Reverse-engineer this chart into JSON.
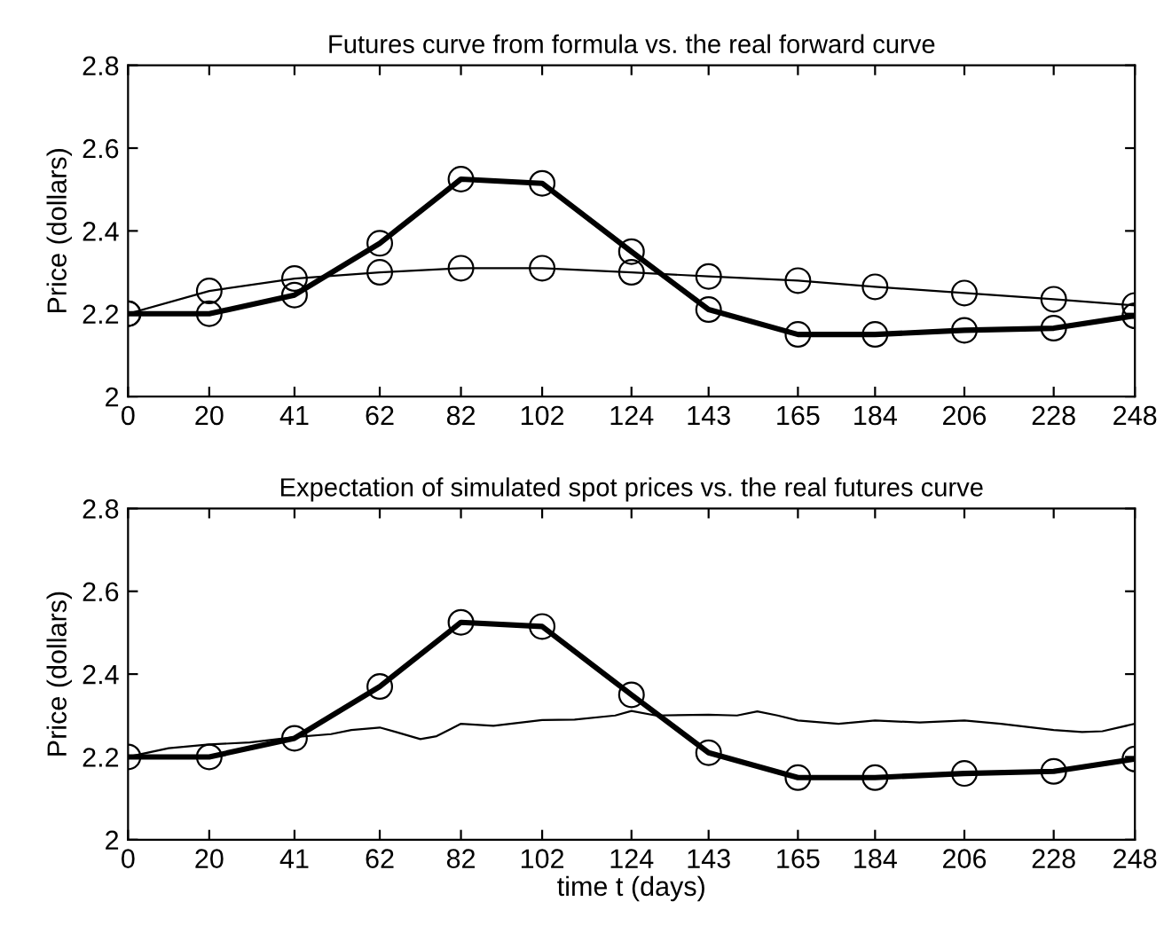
{
  "chart_data": [
    {
      "type": "line",
      "title": "Futures curve from formula vs. the real forward curve",
      "ylabel": "Price (dollars)",
      "xlim": [
        0,
        248
      ],
      "xticks": [
        0,
        20,
        41,
        62,
        82,
        102,
        124,
        143,
        165,
        184,
        206,
        228,
        248
      ],
      "ylim": [
        2,
        2.8
      ],
      "yticks": [
        2,
        2.2,
        2.4,
        2.6,
        2.8
      ],
      "grid": false,
      "legend": false,
      "marker": "circle",
      "x": [
        0,
        20,
        41,
        62,
        82,
        102,
        124,
        143,
        165,
        184,
        206,
        228,
        248
      ],
      "series": [
        {
          "color": "#000000",
          "values": [
            2.2,
            2.2,
            2.245,
            2.37,
            2.525,
            2.515,
            2.35,
            2.21,
            2.15,
            2.15,
            2.16,
            2.165,
            2.195
          ]
        },
        {
          "color": "#000000",
          "values": [
            2.2,
            2.255,
            2.285,
            2.3,
            2.31,
            2.31,
            2.3,
            2.29,
            2.28,
            2.265,
            2.25,
            2.235,
            2.22
          ]
        }
      ]
    },
    {
      "type": "line",
      "title": "Expectation of simulated spot prices vs. the real futures curve",
      "xlabel": "time t (days)",
      "ylabel": "Price (dollars)",
      "xlim": [
        0,
        248
      ],
      "xticks": [
        0,
        20,
        41,
        62,
        82,
        102,
        124,
        143,
        165,
        184,
        206,
        228,
        248
      ],
      "ylim": [
        2,
        2.8
      ],
      "yticks": [
        2,
        2.2,
        2.4,
        2.6,
        2.8
      ],
      "grid": false,
      "legend": false,
      "x": [
        0,
        20,
        41,
        62,
        82,
        102,
        124,
        143,
        165,
        184,
        206,
        228,
        248
      ],
      "series": [
        {
          "color": "#000000",
          "marker": "circle",
          "values": [
            2.2,
            2.2,
            2.245,
            2.37,
            2.525,
            2.515,
            2.35,
            2.21,
            2.15,
            2.15,
            2.16,
            2.165,
            2.195
          ]
        },
        {
          "color": "#000000",
          "marker": "none",
          "x": [
            0,
            10,
            20,
            30,
            41,
            50,
            55,
            62,
            66,
            72,
            76,
            82,
            90,
            102,
            110,
            120,
            124,
            130,
            143,
            150,
            155,
            160,
            165,
            175,
            184,
            195,
            206,
            215,
            228,
            235,
            240,
            248
          ],
          "values": [
            2.2,
            2.221,
            2.23,
            2.235,
            2.248,
            2.255,
            2.265,
            2.271,
            2.26,
            2.243,
            2.25,
            2.28,
            2.275,
            2.289,
            2.29,
            2.3,
            2.311,
            2.3,
            2.302,
            2.3,
            2.31,
            2.3,
            2.288,
            2.28,
            2.288,
            2.283,
            2.288,
            2.28,
            2.265,
            2.26,
            2.262,
            2.28
          ]
        }
      ]
    }
  ]
}
